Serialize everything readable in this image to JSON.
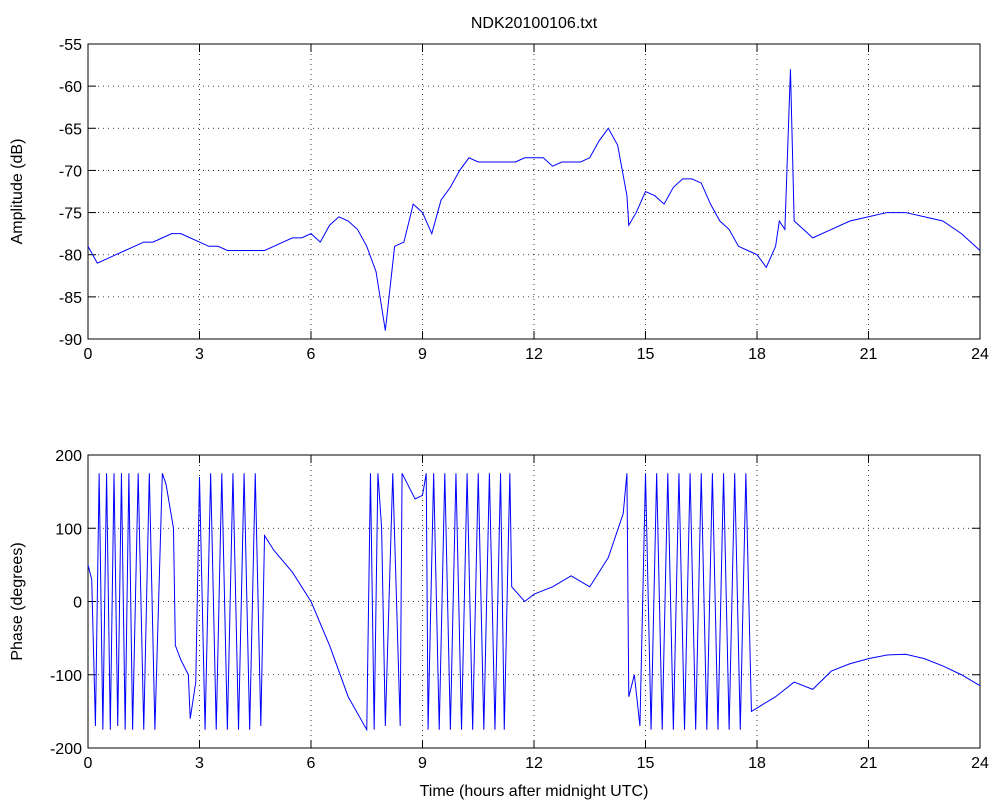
{
  "chart_data": [
    {
      "type": "line",
      "title": "NDK20100106.txt",
      "ylabel": "Amplitude (dB)",
      "color": "#0000ff",
      "grid": true,
      "xlim": [
        0,
        24
      ],
      "xticks": [
        0,
        3,
        6,
        9,
        12,
        15,
        18,
        21,
        24
      ],
      "ylim": [
        -90,
        -55
      ],
      "yticks": [
        -90,
        -85,
        -80,
        -75,
        -70,
        -65,
        -60,
        -55
      ],
      "x": [
        0,
        0.25,
        0.5,
        0.75,
        1,
        1.25,
        1.5,
        1.75,
        2,
        2.25,
        2.5,
        2.75,
        3,
        3.25,
        3.5,
        3.75,
        4,
        4.25,
        4.5,
        4.75,
        5,
        5.25,
        5.5,
        5.75,
        6,
        6.25,
        6.5,
        6.75,
        7,
        7.25,
        7.5,
        7.75,
        8,
        8.25,
        8.5,
        8.75,
        9,
        9.25,
        9.5,
        9.75,
        10,
        10.25,
        10.5,
        10.75,
        11,
        11.25,
        11.5,
        11.75,
        12,
        12.25,
        12.5,
        12.75,
        13,
        13.25,
        13.5,
        13.75,
        14,
        14.25,
        14.5,
        14.55,
        14.75,
        15,
        15.25,
        15.5,
        15.75,
        16,
        16.25,
        16.5,
        16.75,
        17,
        17.25,
        17.5,
        17.75,
        18,
        18.25,
        18.5,
        18.6,
        18.75,
        18.9,
        19,
        19.25,
        19.5,
        20,
        20.5,
        21,
        21.5,
        22,
        22.5,
        23,
        23.5,
        24
      ],
      "values": [
        -79,
        -81,
        -80.5,
        -80,
        -79.5,
        -79,
        -78.5,
        -78.5,
        -78,
        -77.5,
        -77.5,
        -78,
        -78.5,
        -79,
        -79,
        -79.5,
        -79.5,
        -79.5,
        -79.5,
        -79.5,
        -79,
        -78.5,
        -78,
        -78,
        -77.5,
        -78.5,
        -76.5,
        -75.5,
        -76,
        -77,
        -79,
        -82,
        -89,
        -79,
        -78.5,
        -74,
        -75,
        -77.5,
        -73.5,
        -72,
        -70,
        -68.5,
        -69,
        -69,
        -69,
        -69,
        -69,
        -68.5,
        -68.5,
        -68.5,
        -69.5,
        -69,
        -69,
        -69,
        -68.5,
        -66.5,
        -65,
        -67,
        -73,
        -76.5,
        -75,
        -72.5,
        -73,
        -74,
        -72,
        -71,
        -71,
        -71.5,
        -74,
        -76,
        -77,
        -79,
        -79.5,
        -80,
        -81.5,
        -79,
        -76,
        -77,
        -58,
        -76,
        -77,
        -78,
        -77,
        -76,
        -75.5,
        -75,
        -75,
        -75.5,
        -76,
        -77.5,
        -79.5
      ]
    },
    {
      "type": "line",
      "ylabel": "Phase (degrees)",
      "xlabel": "Time (hours after midnight UTC)",
      "color": "#0000ff",
      "grid": true,
      "xlim": [
        0,
        24
      ],
      "xticks": [
        0,
        3,
        6,
        9,
        12,
        15,
        18,
        21,
        24
      ],
      "ylim": [
        -200,
        200
      ],
      "yticks": [
        -200,
        -100,
        0,
        100,
        200
      ],
      "x": [
        0,
        0.1,
        0.2,
        0.3,
        0.4,
        0.5,
        0.6,
        0.7,
        0.8,
        0.9,
        1.0,
        1.1,
        1.2,
        1.35,
        1.5,
        1.65,
        1.8,
        2.0,
        2.1,
        2.3,
        2.35,
        2.5,
        2.7,
        2.75,
        2.9,
        3.0,
        3.15,
        3.3,
        3.45,
        3.6,
        3.75,
        3.9,
        4.05,
        4.2,
        4.35,
        4.5,
        4.65,
        4.75,
        5.0,
        5.5,
        6.0,
        6.5,
        7.0,
        7.5,
        7.6,
        7.7,
        7.8,
        7.9,
        8.0,
        8.2,
        8.4,
        8.45,
        8.6,
        8.8,
        9.0,
        9.1,
        9.15,
        9.3,
        9.45,
        9.6,
        9.75,
        9.9,
        10.05,
        10.2,
        10.35,
        10.5,
        10.65,
        10.8,
        10.95,
        11.1,
        11.2,
        11.35,
        11.4,
        11.75,
        12.0,
        12.5,
        13.0,
        13.5,
        14.0,
        14.4,
        14.5,
        14.55,
        14.7,
        14.85,
        15.0,
        15.15,
        15.3,
        15.45,
        15.6,
        15.75,
        15.9,
        16.05,
        16.2,
        16.35,
        16.5,
        16.65,
        16.8,
        16.95,
        17.1,
        17.25,
        17.4,
        17.55,
        17.7,
        17.85,
        18.5,
        19,
        19.5,
        20,
        20.5,
        21,
        21.5,
        22,
        22.5,
        23,
        23.5,
        24
      ],
      "values": [
        50,
        30,
        -170,
        175,
        -175,
        175,
        -175,
        175,
        -170,
        175,
        -175,
        175,
        -175,
        175,
        -175,
        175,
        -175,
        175,
        160,
        100,
        -60,
        -80,
        -100,
        -160,
        -110,
        170,
        -175,
        175,
        -175,
        175,
        -175,
        175,
        -175,
        175,
        -175,
        175,
        -170,
        90,
        70,
        40,
        0,
        -60,
        -130,
        -175,
        175,
        -175,
        175,
        100,
        -170,
        175,
        -170,
        175,
        160,
        140,
        145,
        175,
        -175,
        175,
        -175,
        175,
        -175,
        175,
        -175,
        175,
        -175,
        175,
        -175,
        175,
        -175,
        175,
        -175,
        175,
        20,
        0,
        10,
        20,
        35,
        20,
        60,
        120,
        175,
        -130,
        -100,
        -170,
        175,
        -175,
        175,
        -175,
        175,
        -175,
        175,
        -175,
        175,
        -175,
        175,
        -175,
        175,
        -175,
        175,
        -175,
        175,
        -175,
        175,
        -150,
        -130,
        -110,
        -120,
        -95,
        -85,
        -78,
        -73,
        -72,
        -78,
        -88,
        -100,
        -115
      ]
    }
  ]
}
